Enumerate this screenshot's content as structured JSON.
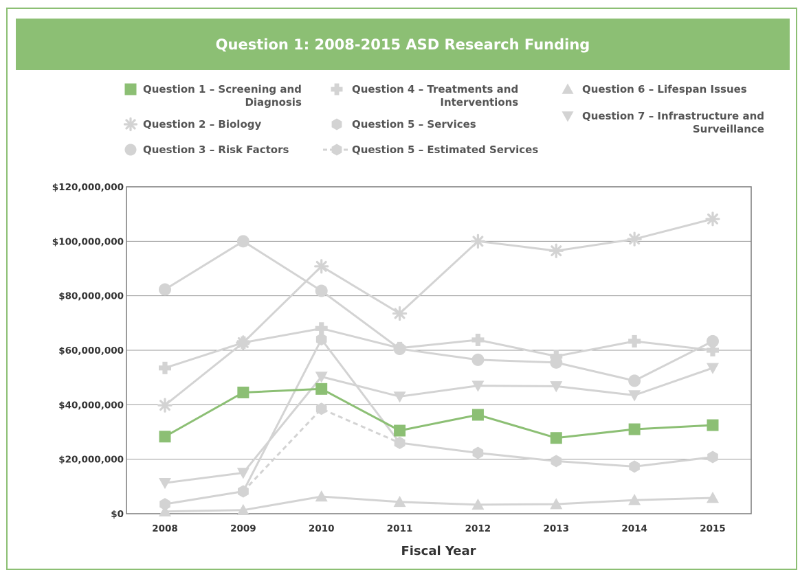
{
  "chart_data": {
    "type": "line",
    "title": "Question 1: 2008-2015 ASD Research Funding",
    "xlabel": "Fiscal Year",
    "ylabel": "",
    "ylim": [
      0,
      120000000
    ],
    "grid": true,
    "categories": [
      "2008",
      "2009",
      "2010",
      "2011",
      "2012",
      "2013",
      "2014",
      "2015"
    ],
    "yticks": [
      0,
      20000000,
      40000000,
      60000000,
      80000000,
      100000000,
      120000000
    ],
    "ytick_labels": [
      "$0",
      "$20,000,000",
      "$40,000,000",
      "$60,000,000",
      "$80,000,000",
      "$100,000,000",
      "$120,000,000"
    ],
    "series": [
      {
        "id": "q2",
        "name": "Question 2 – Biology",
        "legend": [
          "Question 2 – Biology"
        ],
        "marker": "asterisk",
        "color": "#d3d3d3",
        "dashed": false,
        "values": [
          39800000,
          62800000,
          90800000,
          73500000,
          100000000,
          96500000,
          100800000,
          108200000
        ]
      },
      {
        "id": "q3",
        "name": "Question 3 – Risk Factors",
        "legend": [
          "Question 3 – Risk Factors"
        ],
        "marker": "circle",
        "color": "#d3d3d3",
        "dashed": false,
        "values": [
          82300000,
          100000000,
          81800000,
          60500000,
          56500000,
          55500000,
          48800000,
          63300000
        ]
      },
      {
        "id": "q4",
        "name": "Question 4 – Treatments and Interventions",
        "legend": [
          "Question 4 – Treatments and",
          "Interventions"
        ],
        "marker": "plus",
        "color": "#d3d3d3",
        "dashed": false,
        "values": [
          53500000,
          62800000,
          68000000,
          60800000,
          63800000,
          57800000,
          63300000,
          60000000
        ]
      },
      {
        "id": "q5",
        "name": "Question 5 – Services",
        "legend": [
          "Question 5 – Services"
        ],
        "marker": "hexagon",
        "color": "#d3d3d3",
        "dashed": false,
        "values": [
          3500000,
          8200000,
          64000000,
          26000000,
          22300000,
          19300000,
          17300000,
          20800000
        ]
      },
      {
        "id": "q5e",
        "name": "Question 5 – Estimated Services",
        "legend": [
          "Question 5 – Estimated Services"
        ],
        "marker": "hexagon",
        "color": "#d3d3d3",
        "dashed": true,
        "values": [
          null,
          8200000,
          38500000,
          26000000,
          null,
          null,
          null,
          null
        ]
      },
      {
        "id": "q6",
        "name": "Question 6 – Lifespan Issues",
        "legend": [
          "Question 6 – Lifespan Issues"
        ],
        "marker": "triangle-up",
        "color": "#d3d3d3",
        "dashed": false,
        "values": [
          800000,
          1300000,
          6300000,
          4300000,
          3300000,
          3500000,
          5000000,
          5800000
        ]
      },
      {
        "id": "q7",
        "name": "Question 7 – Infrastructure and Surveillance",
        "legend": [
          "Question 7 – Infrastructure and",
          "Surveillance"
        ],
        "marker": "triangle-down",
        "color": "#d3d3d3",
        "dashed": false,
        "values": [
          11300000,
          15000000,
          50300000,
          43000000,
          47000000,
          46800000,
          43500000,
          53500000
        ]
      },
      {
        "id": "q1",
        "name": "Question 1 – Screening and Diagnosis",
        "legend": [
          "Question 1 – Screening and",
          "Diagnosis"
        ],
        "marker": "square",
        "color": "#8cbf74",
        "dashed": false,
        "values": [
          28300000,
          44500000,
          45800000,
          30500000,
          36300000,
          27800000,
          31000000,
          32500000
        ]
      }
    ],
    "legend_order": [
      "q1",
      "q2",
      "q3",
      "q4",
      "q5",
      "q5e",
      "q6",
      "q7"
    ]
  }
}
